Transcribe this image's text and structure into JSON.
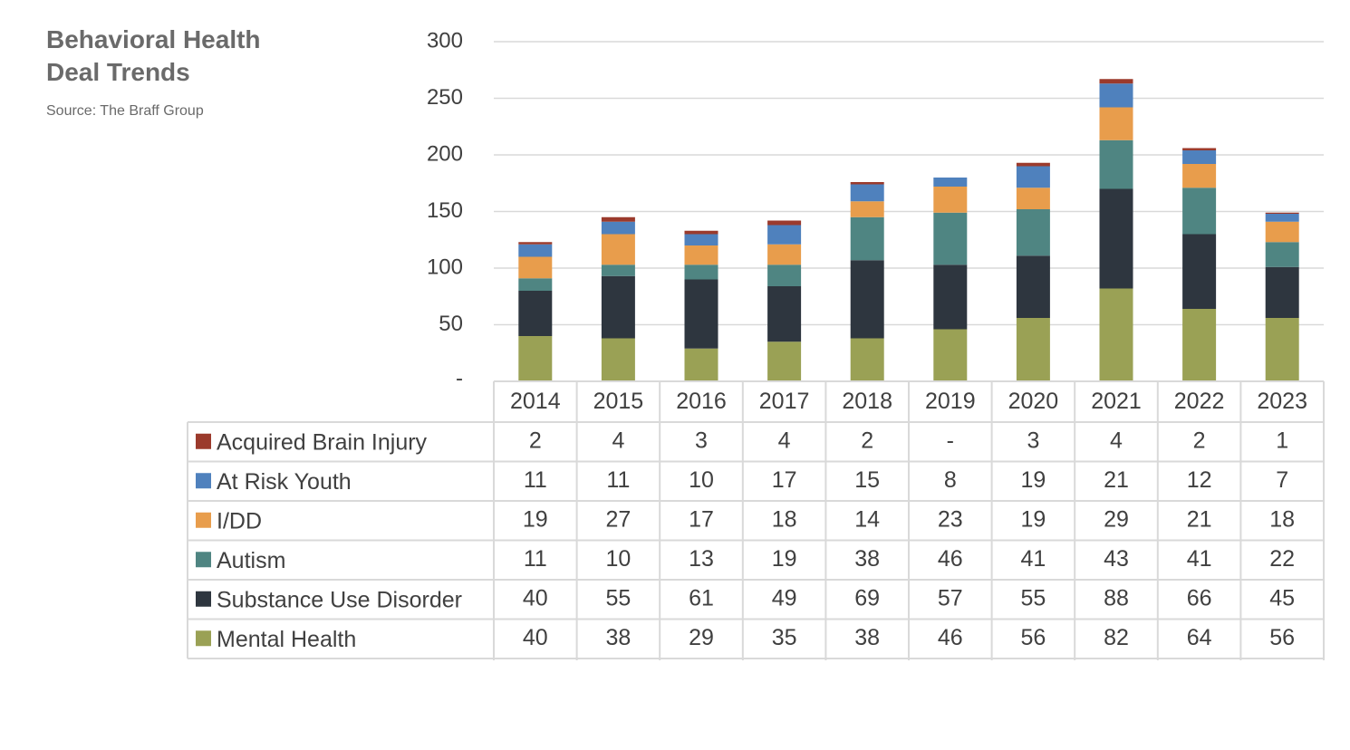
{
  "title_lines": [
    "Behavioral Health",
    "Deal Trends"
  ],
  "source": "Source: The Braff Group",
  "chart_data": {
    "type": "bar",
    "stacked": true,
    "categories": [
      "2014",
      "2015",
      "2016",
      "2017",
      "2018",
      "2019",
      "2020",
      "2021",
      "2022",
      "2023"
    ],
    "ylim": [
      0,
      300
    ],
    "yticks": [
      0,
      50,
      100,
      150,
      200,
      250,
      300
    ],
    "ytick_labels": [
      "-",
      "50",
      "100",
      "150",
      "200",
      "250",
      "300"
    ],
    "grid": true,
    "legend": "data-table",
    "series": [
      {
        "name": "Mental Health",
        "color": "#9aa155",
        "values": [
          40,
          38,
          29,
          35,
          38,
          46,
          56,
          82,
          64,
          56
        ],
        "labels": [
          "40",
          "38",
          "29",
          "35",
          "38",
          "46",
          "56",
          "82",
          "64",
          "56"
        ]
      },
      {
        "name": "Substance Use Disorder",
        "color": "#2e363f",
        "values": [
          40,
          55,
          61,
          49,
          69,
          57,
          55,
          88,
          66,
          45
        ],
        "labels": [
          "40",
          "55",
          "61",
          "49",
          "69",
          "57",
          "55",
          "88",
          "66",
          "45"
        ]
      },
      {
        "name": "Autism",
        "color": "#4f8582",
        "values": [
          11,
          10,
          13,
          19,
          38,
          46,
          41,
          43,
          41,
          22
        ],
        "labels": [
          "11",
          "10",
          "13",
          "19",
          "38",
          "46",
          "41",
          "43",
          "41",
          "22"
        ]
      },
      {
        "name": "I/DD",
        "color": "#e89d4c",
        "values": [
          19,
          27,
          17,
          18,
          14,
          23,
          19,
          29,
          21,
          18
        ],
        "labels": [
          "19",
          "27",
          "17",
          "18",
          "14",
          "23",
          "19",
          "29",
          "21",
          "18"
        ]
      },
      {
        "name": "At Risk Youth",
        "color": "#4f81bd",
        "values": [
          11,
          11,
          10,
          17,
          15,
          8,
          19,
          21,
          12,
          7
        ],
        "labels": [
          "11",
          "11",
          "10",
          "17",
          "15",
          "8",
          "19",
          "21",
          "12",
          "7"
        ]
      },
      {
        "name": "Acquired Brain Injury",
        "color": "#9b3a2c",
        "values": [
          2,
          4,
          3,
          4,
          2,
          0,
          3,
          4,
          2,
          1
        ],
        "labels": [
          "2",
          "4",
          "3",
          "4",
          "2",
          "-",
          "3",
          "4",
          "2",
          "1"
        ]
      }
    ]
  }
}
